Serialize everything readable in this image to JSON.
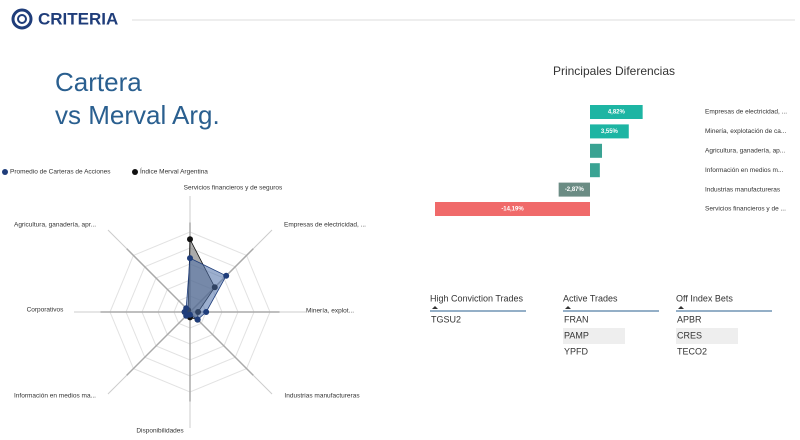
{
  "header": {
    "logo": "CRITERIA",
    "title_line1": "Cartera",
    "title_line2": "vs Merval Arg."
  },
  "chart_data": [
    {
      "type": "radar",
      "categories": [
        "Servicios financieros y de seguros",
        "Empresas de electricidad, ...",
        "Minería, explot...",
        "Industrias manufactureras",
        "Disponibilidades",
        "Información en medios ma...",
        "Corporativos",
        "Agricultura, ganadería, apr..."
      ],
      "series": [
        {
          "name": "Promedio de Carteras de Acciones",
          "color": "#1f3d7a",
          "values": [
            20,
            19,
            6,
            4,
            1,
            2,
            2,
            2
          ]
        },
        {
          "name": "Índice Merval Argentina",
          "color": "#111111",
          "values": [
            27,
            13,
            3,
            4,
            2,
            1,
            2,
            1
          ]
        }
      ]
    },
    {
      "type": "bar",
      "orientation": "horizontal",
      "title": "Principales Diferencias",
      "categories": [
        "Empresas de electricidad, ...",
        "Minería, explotación de ca...",
        "Agricultura, ganadería, ap...",
        "Información en medios m...",
        "Industrias manufactureras",
        "Servicios financieros y de ..."
      ],
      "values": [
        4.82,
        3.55,
        1.1,
        0.9,
        -2.87,
        -14.19
      ],
      "value_labels": [
        "4,82%",
        "3,55%",
        null,
        null,
        "-2,87%",
        "-14,19%"
      ],
      "colors": [
        "#1db5a3",
        "#1db5a3",
        "#3aa393",
        "#3aa393",
        "#6b8c84",
        "#f06a6a"
      ]
    }
  ],
  "tables": [
    {
      "header": "High Conviction Trades",
      "rows": [
        "TGSU2"
      ]
    },
    {
      "header": "Active Trades",
      "rows": [
        "FRAN",
        "PAMP",
        "YPFD"
      ]
    },
    {
      "header": "Off Index Bets",
      "rows": [
        "APBR",
        "CRES",
        "TECO2"
      ]
    }
  ]
}
